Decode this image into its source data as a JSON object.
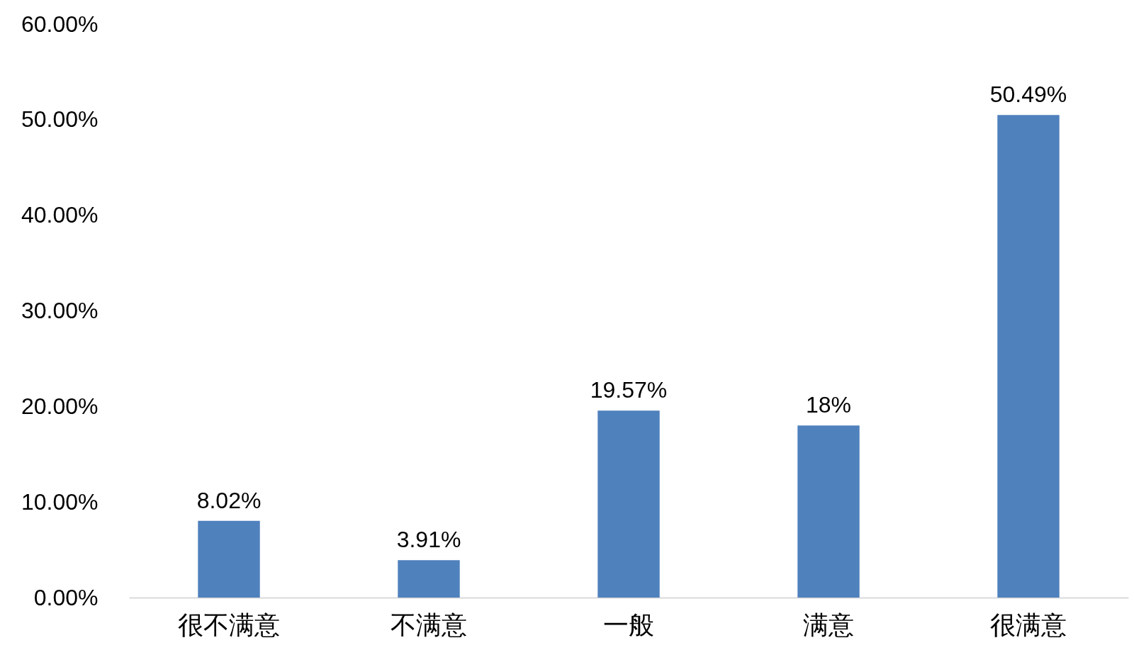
{
  "chart_data": {
    "type": "bar",
    "categories": [
      "很不满意",
      "不满意",
      "一般",
      "满意",
      "很满意"
    ],
    "values": [
      8.02,
      3.91,
      19.57,
      18,
      50.49
    ],
    "value_labels": [
      "8.02%",
      "3.91%",
      "19.57%",
      "18%",
      "50.49%"
    ],
    "color": "#4f81bd",
    "ylim": [
      0,
      60
    ],
    "yticks": [
      {
        "value": 0,
        "label": "0.00%"
      },
      {
        "value": 10,
        "label": "10.00%"
      },
      {
        "value": 20,
        "label": "20.00%"
      },
      {
        "value": 30,
        "label": "30.00%"
      },
      {
        "value": 40,
        "label": "40.00%"
      },
      {
        "value": 50,
        "label": "50.00%"
      },
      {
        "value": 60,
        "label": "60.00%"
      }
    ],
    "grid": false
  }
}
